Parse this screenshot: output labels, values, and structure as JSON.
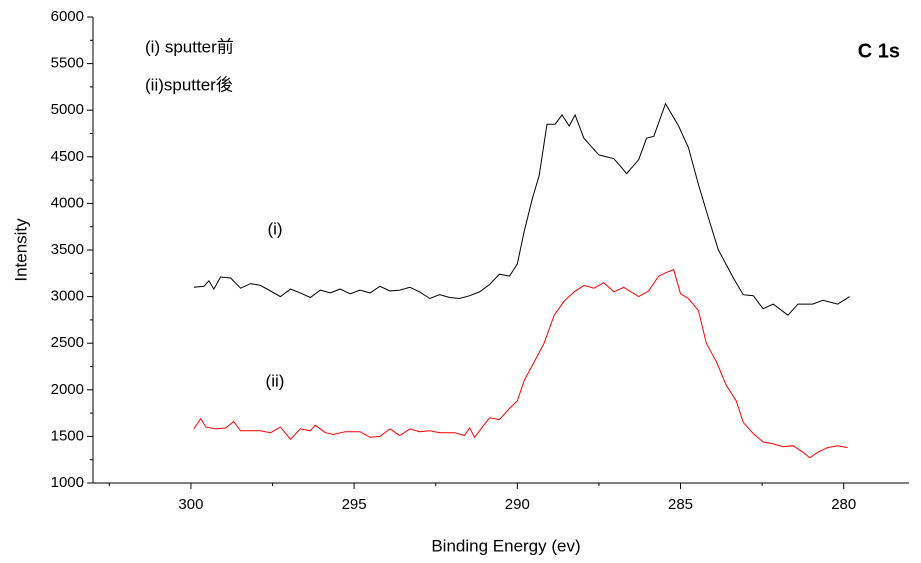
{
  "chart_data": {
    "type": "line",
    "x_label": "Binding Energy (ev)",
    "y_label": "Intensity",
    "annotations": [
      "(i) sputter前",
      "(ii)sputter後",
      "C 1s"
    ],
    "xlim": [
      303,
      278
    ],
    "ylim": [
      1000,
      6000
    ],
    "xticks": [
      300,
      295,
      290,
      285,
      280
    ],
    "xminorticks": [
      302.5,
      297.5,
      292.5,
      287.5,
      282.5
    ],
    "yticks": [
      1000,
      1500,
      2000,
      2500,
      3000,
      3500,
      4000,
      4500,
      5000,
      5500,
      6000
    ],
    "yminorticks": [
      1250,
      1750,
      2250,
      2750,
      3250,
      3750,
      4250,
      4750,
      5250,
      5750
    ],
    "series": [
      {
        "name": "(i)",
        "color": "#000000",
        "x": [
          299.91,
          299.6,
          299.45,
          299.3,
          299.09,
          298.78,
          298.48,
          298.17,
          297.87,
          297.56,
          297.26,
          296.95,
          296.65,
          296.34,
          296.04,
          295.73,
          295.43,
          295.12,
          294.82,
          294.51,
          294.21,
          293.9,
          293.6,
          293.29,
          292.99,
          292.68,
          292.38,
          292.07,
          291.77,
          291.46,
          291.16,
          290.85,
          290.55,
          290.24,
          290.0,
          289.79,
          289.54,
          289.33,
          289.09,
          288.84,
          288.63,
          288.41,
          288.23,
          287.96,
          287.5,
          287.04,
          286.65,
          286.28,
          286.04,
          285.82,
          285.46,
          285.06,
          284.76,
          284.45,
          284.15,
          283.84,
          283.38,
          283.08,
          282.77,
          282.47,
          282.16,
          281.71,
          281.4,
          280.95,
          280.64,
          280.18,
          279.82
        ],
        "values": [
          3100,
          3110,
          3170,
          3080,
          3210,
          3200,
          3090,
          3140,
          3120,
          3060,
          3000,
          3080,
          3040,
          2990,
          3070,
          3040,
          3080,
          3030,
          3070,
          3040,
          3110,
          3060,
          3070,
          3100,
          3050,
          2980,
          3020,
          2990,
          2980,
          3010,
          3050,
          3130,
          3240,
          3220,
          3350,
          3700,
          4050,
          4300,
          4850,
          4850,
          4950,
          4830,
          4950,
          4700,
          4520,
          4480,
          4320,
          4470,
          4700,
          4720,
          5070,
          4830,
          4600,
          4200,
          3850,
          3500,
          3200,
          3020,
          3010,
          2870,
          2920,
          2800,
          2920,
          2920,
          2960,
          2920,
          3000
        ]
      },
      {
        "name": "(ii)",
        "color": "#ff0000",
        "x": [
          299.91,
          299.7,
          299.54,
          299.24,
          298.93,
          298.69,
          298.48,
          297.87,
          297.56,
          297.26,
          296.95,
          296.65,
          296.34,
          296.19,
          295.88,
          295.64,
          295.27,
          294.82,
          294.51,
          294.21,
          293.9,
          293.6,
          293.29,
          292.99,
          292.68,
          292.38,
          291.92,
          291.62,
          291.46,
          291.31,
          291.07,
          290.85,
          290.55,
          290.24,
          290.0,
          289.79,
          289.48,
          289.18,
          288.87,
          288.57,
          288.26,
          287.96,
          287.65,
          287.35,
          287.04,
          286.74,
          286.28,
          285.98,
          285.67,
          285.43,
          285.21,
          285.0,
          284.76,
          284.45,
          284.21,
          283.9,
          283.6,
          283.29,
          283.08,
          282.77,
          282.47,
          282.16,
          281.86,
          281.55,
          281.25,
          281.04,
          280.79,
          280.49,
          280.18,
          279.88
        ],
        "values": [
          1580,
          1690,
          1600,
          1580,
          1590,
          1660,
          1560,
          1560,
          1540,
          1600,
          1470,
          1580,
          1560,
          1620,
          1540,
          1520,
          1550,
          1550,
          1490,
          1500,
          1580,
          1510,
          1580,
          1550,
          1560,
          1540,
          1540,
          1510,
          1590,
          1490,
          1600,
          1700,
          1680,
          1800,
          1880,
          2100,
          2300,
          2500,
          2800,
          2950,
          3050,
          3120,
          3090,
          3150,
          3050,
          3100,
          3000,
          3060,
          3220,
          3260,
          3290,
          3030,
          2980,
          2850,
          2500,
          2300,
          2050,
          1880,
          1650,
          1530,
          1440,
          1420,
          1390,
          1400,
          1330,
          1270,
          1330,
          1380,
          1400,
          1380
        ]
      }
    ]
  }
}
